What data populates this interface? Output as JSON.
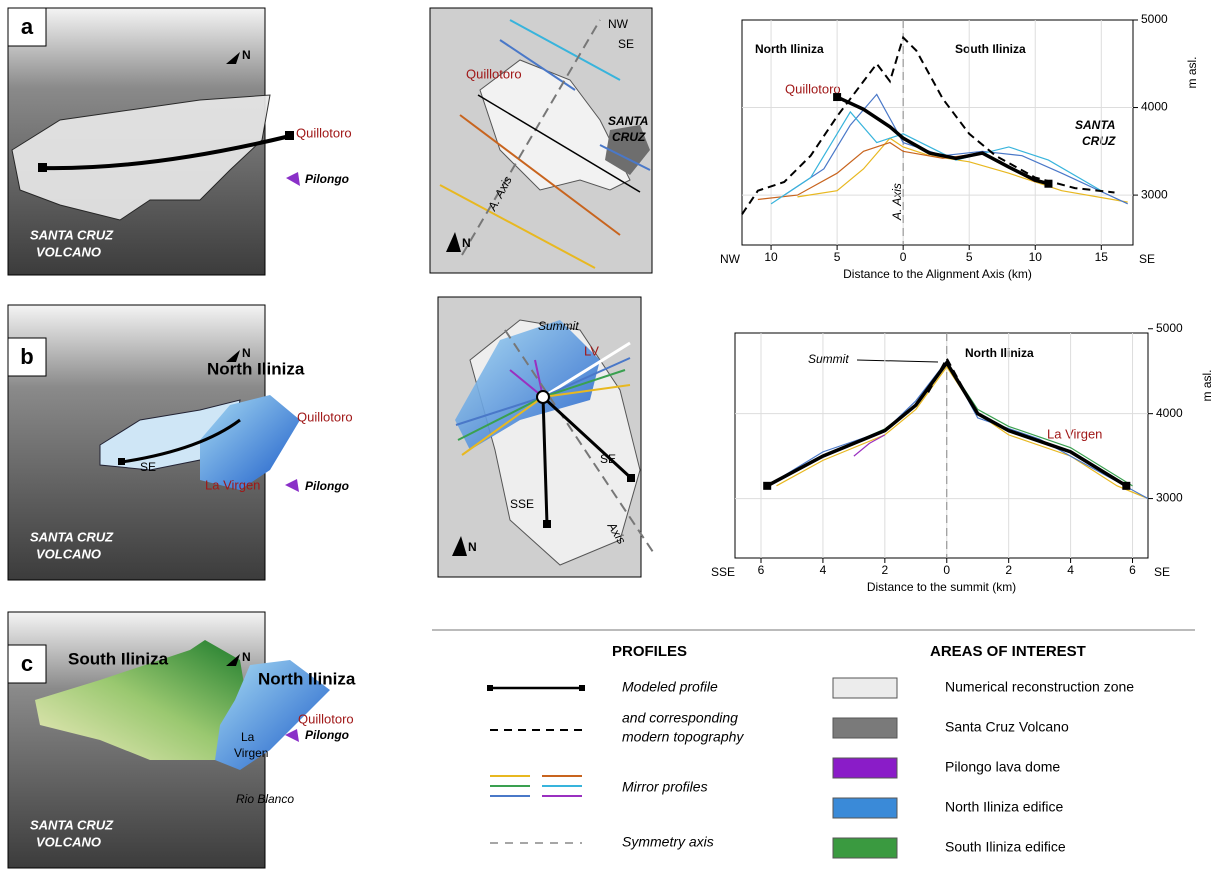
{
  "north": "N",
  "panels": [
    {
      "letter": "a",
      "map3d": {
        "labels": [
          "Quillotoro",
          "Pilongo",
          "SANTA CRUZ",
          "VOLCANO"
        ]
      },
      "plan": {
        "labels": [
          "NW",
          "SE",
          "Quillotoro",
          "SANTA",
          "CRUZ",
          "A. Axis"
        ]
      },
      "chart": {
        "type": "line",
        "x_label": "Distance to the Alignment Axis (km)",
        "y_label": "m asl.",
        "left_direction": "NW",
        "right_direction": "SE",
        "annotations": [
          "North Iliniza",
          "South Iliniza",
          "Quillotoro",
          "SANTA",
          "CRUZ",
          "A. Axis"
        ],
        "xlim": [
          -12.2,
          17.4
        ],
        "ylim": [
          2430,
          5000
        ],
        "xticks": [
          {
            "value": -10,
            "label": "10"
          },
          {
            "value": -5,
            "label": "5"
          },
          0,
          5,
          10,
          15
        ],
        "yticks": [
          3000,
          4000,
          5000
        ],
        "grid": true,
        "series": [
          {
            "color": "#e8b820",
            "x": [
              -8,
              -5,
              -3,
              -1,
              0,
              2,
              5,
              8,
              12,
              17
            ],
            "values": [
              2980,
              3050,
              3300,
              3650,
              3550,
              3450,
              3380,
              3250,
              3050,
              2920
            ]
          },
          {
            "color": "#c8641e",
            "x": [
              -11,
              -8,
              -5,
              -3,
              -1,
              0,
              3,
              6,
              10
            ],
            "values": [
              2950,
              3000,
              3250,
              3500,
              3600,
              3500,
              3420,
              3480,
              3150
            ]
          },
          {
            "color": "#4a78c8",
            "x": [
              -9,
              -6,
              -4,
              -2,
              0,
              3,
              6,
              9,
              12,
              17
            ],
            "values": [
              3000,
              3300,
              3800,
              4150,
              3600,
              3450,
              3500,
              3450,
              3250,
              2900
            ]
          },
          {
            "color": "#38b4dc",
            "x": [
              -10,
              -7,
              -4,
              -2,
              0,
              4,
              8,
              11,
              15
            ],
            "values": [
              2900,
              3200,
              3950,
              3600,
              3700,
              3400,
              3550,
              3400,
              3050
            ]
          },
          {
            "color": "#000000",
            "dashed": true,
            "x": [
              -12.2,
              -11,
              -9,
              -7,
              -5,
              -3,
              -2,
              -1,
              0,
              1,
              3,
              5,
              7,
              10,
              13,
              16
            ],
            "values": [
              2780,
              3050,
              3150,
              3450,
              3900,
              4300,
              4500,
              4300,
              4800,
              4650,
              4100,
              3700,
              3450,
              3200,
              3080,
              3030
            ]
          },
          {
            "color": "#000000",
            "thick": true,
            "x": [
              -5,
              -3,
              -1,
              0,
              2,
              4,
              6,
              8,
              10,
              11
            ],
            "values": [
              4120,
              3980,
              3780,
              3650,
              3480,
              3420,
              3480,
              3320,
              3170,
              3130
            ]
          }
        ]
      }
    },
    {
      "letter": "b",
      "map3d": {
        "labels": [
          "North Iliniza",
          "Quillotoro",
          "SE",
          "La Virgen",
          "Pilongo",
          "SANTA CRUZ",
          "VOLCANO"
        ]
      },
      "plan": {
        "labels": [
          "Summit",
          "LV",
          "SE",
          "SSE",
          "Axis"
        ]
      },
      "chart": {
        "type": "line",
        "x_label": "Distance to the summit (km)",
        "y_label": "m asl.",
        "left_direction": "SSE",
        "right_direction": "SE",
        "annotations": [
          "Summit",
          "North Iliniza",
          "La Virgen"
        ],
        "xlim": [
          -6.84,
          6.5
        ],
        "ylim": [
          2300,
          4950
        ],
        "xticks": [
          {
            "value": -6,
            "label": "6"
          },
          {
            "value": -4,
            "label": "4"
          },
          {
            "value": -2,
            "label": "2"
          },
          0,
          2,
          4,
          6
        ],
        "yticks": [
          3000,
          4000,
          5000
        ],
        "grid": true,
        "series": [
          {
            "color": "#e8b820",
            "x": [
              -5.5,
              -4,
              -2,
              -1,
              0,
              1,
              2,
              4,
              5.5,
              6.5
            ],
            "values": [
              3150,
              3450,
              3750,
              4050,
              4550,
              4000,
              3750,
              3500,
              3150,
              3000
            ]
          },
          {
            "color": "#3aa050",
            "x": [
              -5.6,
              -4,
              -2,
              -1,
              0,
              1,
              2,
              4,
              6
            ],
            "values": [
              3180,
              3500,
              3820,
              4100,
              4600,
              4050,
              3850,
              3600,
              3150
            ]
          },
          {
            "color": "#4a78c8",
            "x": [
              -5.8,
              -4,
              -2,
              -1,
              0,
              1,
              3,
              5,
              6.5
            ],
            "values": [
              3150,
              3550,
              3800,
              4150,
              4620,
              3950,
              3700,
              3300,
              3000
            ]
          },
          {
            "color": "#9a30c0",
            "x": [
              -3,
              -2.5,
              -2
            ],
            "values": [
              3500,
              3650,
              3750
            ]
          },
          {
            "color": "#000000",
            "dashed": true,
            "x": [
              -0.6,
              0,
              0.6
            ],
            "values": [
              4250,
              4650,
              4250
            ]
          },
          {
            "color": "#000000",
            "thick": true,
            "x": [
              -5.8,
              -4,
              -2,
              -1,
              0,
              1,
              2,
              4,
              5.8
            ],
            "values": [
              3150,
              3500,
              3800,
              4100,
              4600,
              4000,
              3800,
              3550,
              3150
            ]
          }
        ]
      }
    },
    {
      "letter": "c",
      "map3d": {
        "labels": [
          "South Iliniza",
          "North Iliniza",
          "Quillotoro",
          "La",
          "Virgen",
          "Pilongo",
          "Rio Blanco",
          "SANTA CRUZ",
          "VOLCANO"
        ]
      }
    }
  ],
  "legend": {
    "profiles_title": "PROFILES",
    "profiles": [
      "Modeled profile",
      "and corresponding",
      "modern topography",
      "Mirror profiles",
      "Symmetry axis"
    ],
    "mirror_colors": [
      "#e8b820",
      "#c8641e",
      "#3aa050",
      "#38b4dc",
      "#4a78c8",
      "#9a30c0"
    ],
    "areas_title": "AREAS OF INTEREST",
    "areas": [
      {
        "name": "Numerical reconstruction zone",
        "color": "#ececec"
      },
      {
        "name": "Santa Cruz Volcano",
        "color": "#7a7a7a"
      },
      {
        "name": "Pilongo lava dome",
        "color": "#8a1cc8"
      },
      {
        "name": "North Iliniza edifice",
        "color": "#3a8ad8"
      },
      {
        "name": "South Iliniza edifice",
        "color": "#3a9a40"
      }
    ]
  }
}
